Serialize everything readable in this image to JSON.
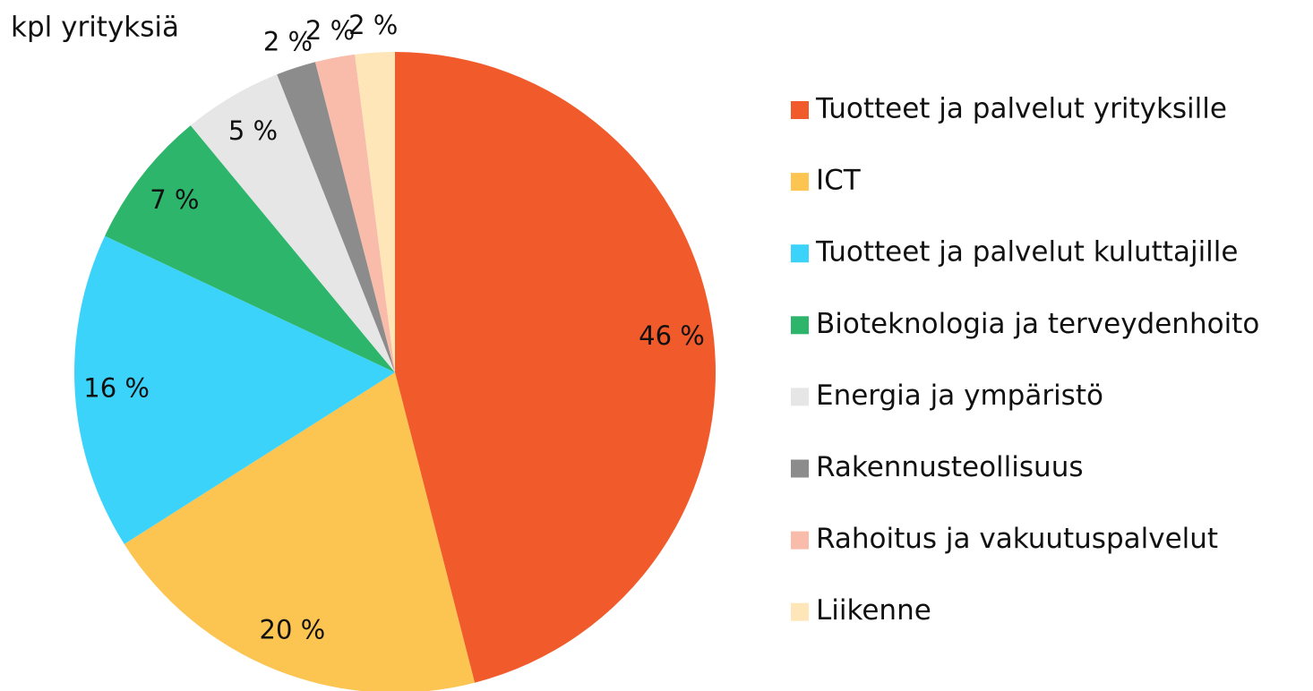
{
  "chart_data": {
    "type": "pie",
    "title": "kpl yrityksiä",
    "categories": [
      "Tuotteet ja palvelut yrityksille",
      "ICT",
      "Tuotteet ja palvelut kuluttajille",
      "Bioteknologia ja terveydenhoito",
      "Energia ja ympäristö",
      "Rakennusteollisuus",
      "Rahoitus ja vakuutuspalvelut",
      "Liikenne"
    ],
    "values": [
      46,
      20,
      16,
      7,
      5,
      2,
      2,
      2
    ],
    "value_labels": [
      "46 %",
      "20 %",
      "16 %",
      "7 %",
      "5 %",
      "2 %",
      "2 %",
      "2 %"
    ],
    "colors": [
      "#F15A2B",
      "#FCC451",
      "#3CD3FA",
      "#2DB56C",
      "#E6E6E6",
      "#8C8C8C",
      "#F9BBAA",
      "#FEE6B8"
    ],
    "legend": "right"
  }
}
